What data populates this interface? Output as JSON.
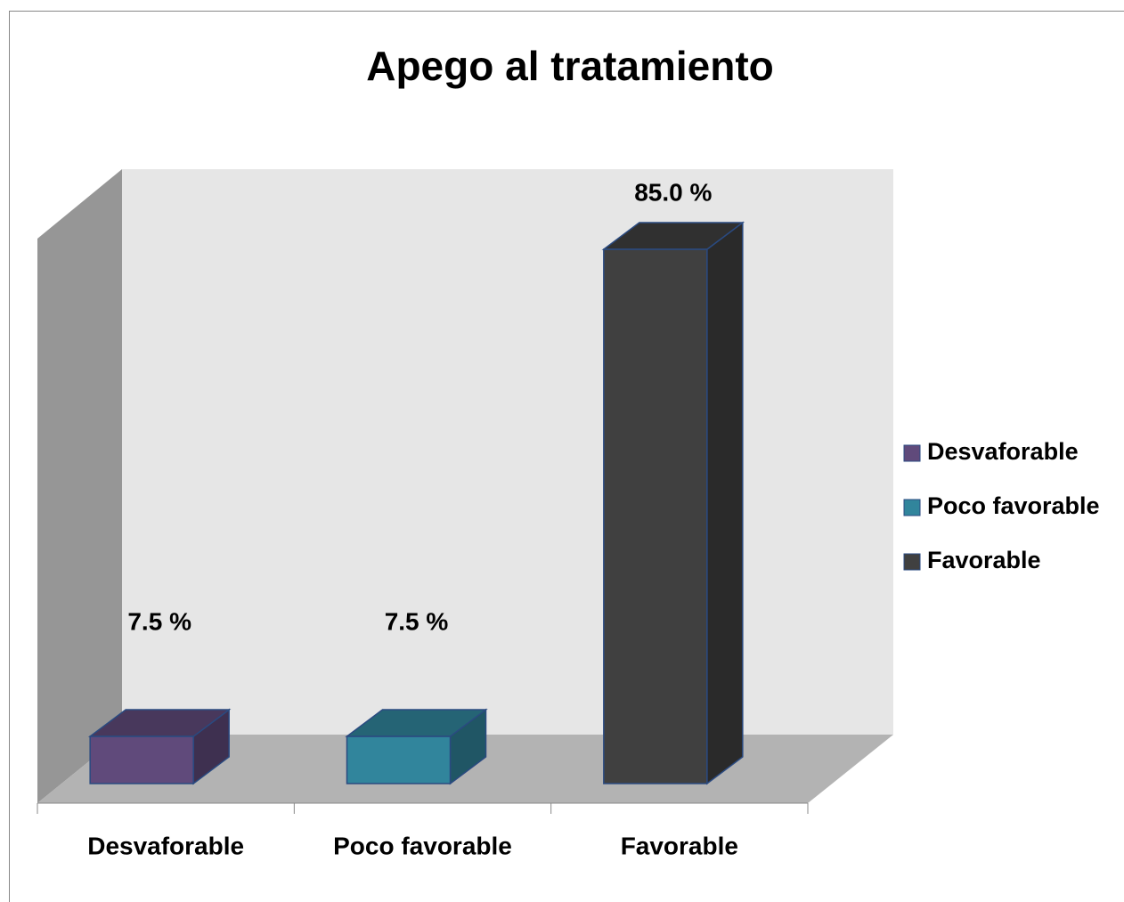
{
  "chart_data": {
    "type": "bar3d",
    "title": "Apego al tratamiento",
    "categories": [
      "Desvaforable",
      "Poco favorable",
      "Favorable"
    ],
    "values": [
      7.5,
      7.5,
      85.0
    ],
    "value_labels": [
      "7.5 %",
      "7.5 %",
      "85.0 %"
    ],
    "colors": [
      "#604a7b",
      "#31859c",
      "#404040"
    ],
    "ylim": [
      0,
      90
    ],
    "legend": "right"
  }
}
